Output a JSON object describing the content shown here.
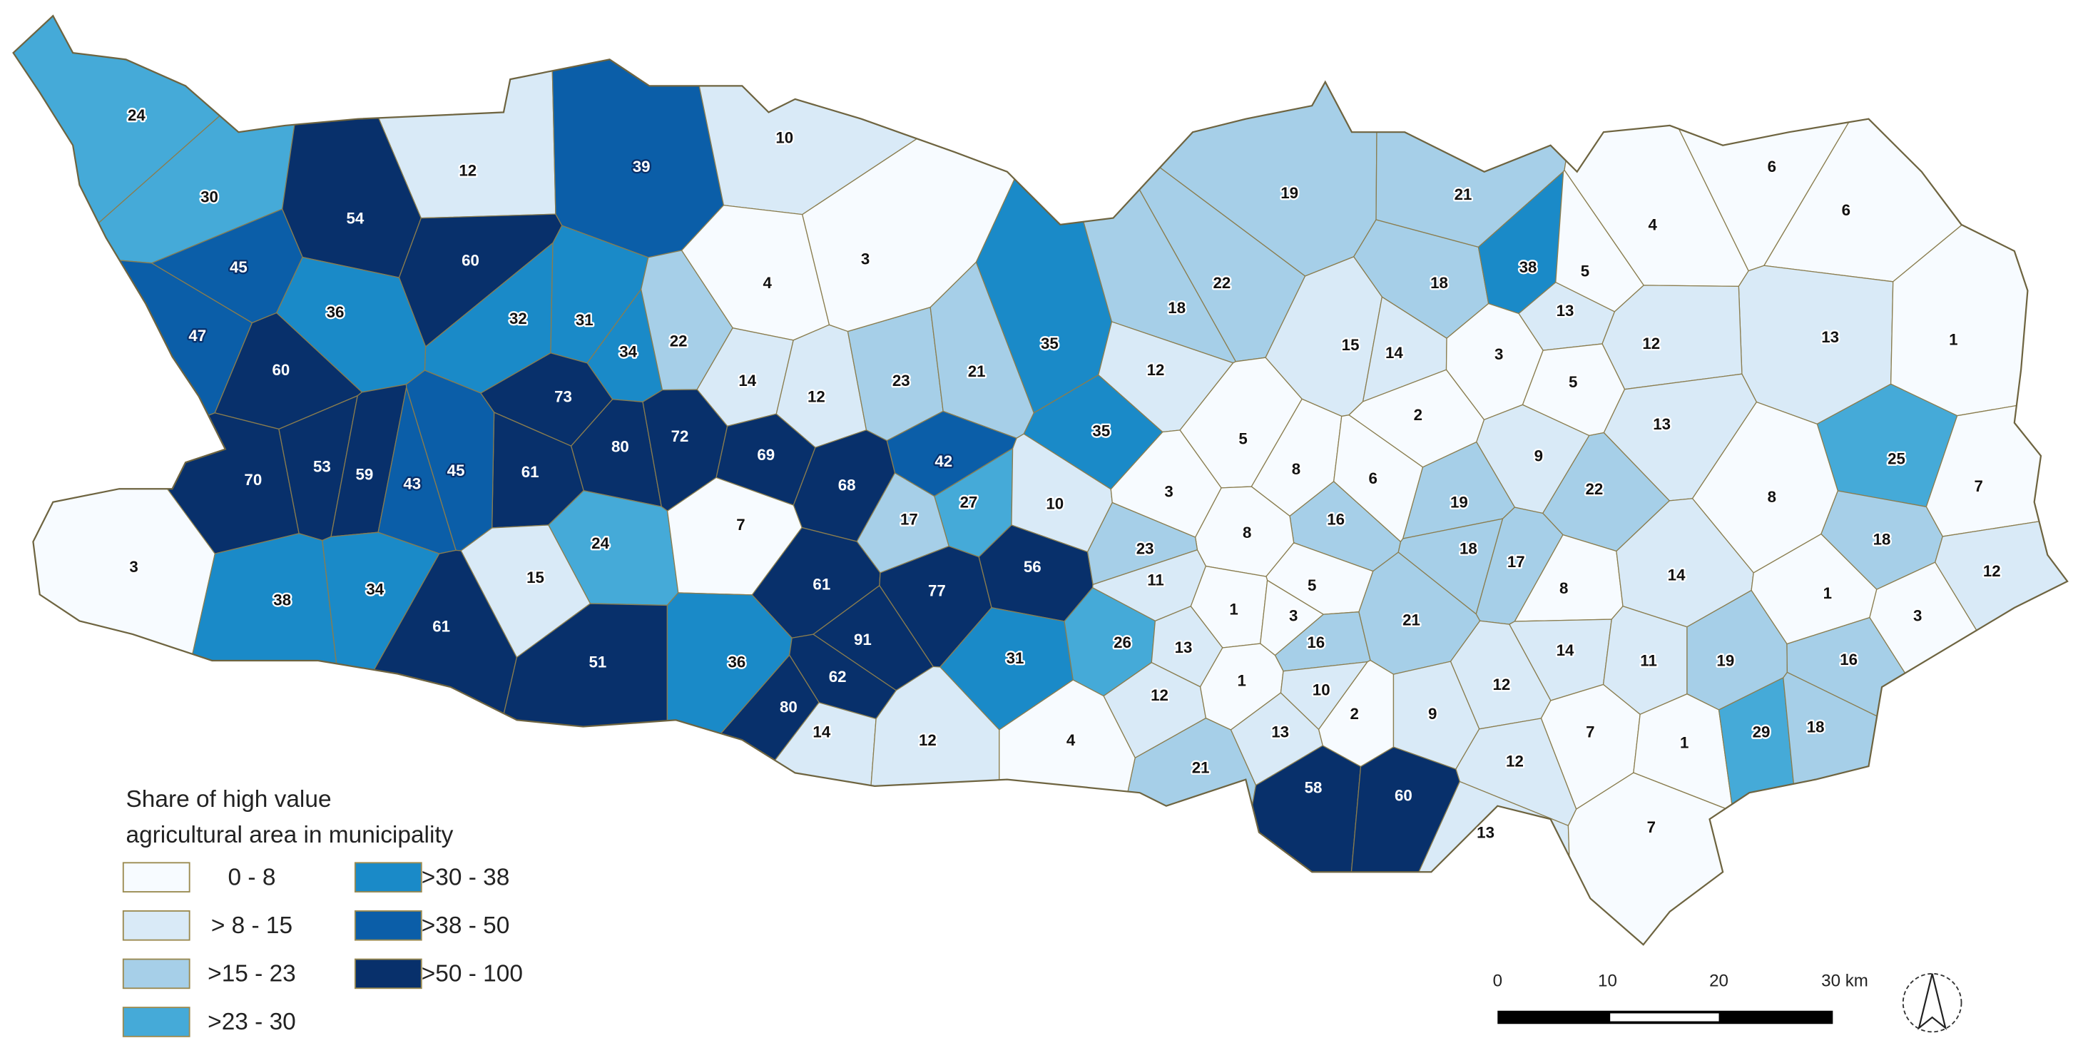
{
  "legend": {
    "title": [
      "Share of high value",
      "agricultural area in municipality"
    ],
    "classes": [
      {
        "label": "0 - 8",
        "max": 8,
        "color": "#f7fbff"
      },
      {
        "label": "> 8 - 15",
        "max": 15,
        "color": "#d9eaf7"
      },
      {
        "label": ">15 - 23",
        "max": 23,
        "color": "#a6cfe8"
      },
      {
        "label": ">23 - 30",
        "max": 30,
        "color": "#45aad8"
      },
      {
        "label": ">30 - 38",
        "max": 38,
        "color": "#1a8ac8"
      },
      {
        "label": ">38 - 50",
        "max": 50,
        "color": "#0b5ea8"
      },
      {
        "label": ">50 - 100",
        "max": 100,
        "color": "#08306b"
      }
    ]
  },
  "municipalities": [
    {
      "value": 24
    },
    {
      "value": 30
    },
    {
      "value": 12
    },
    {
      "value": 54
    },
    {
      "value": 60
    },
    {
      "value": 39
    },
    {
      "value": 10
    },
    {
      "value": 3
    },
    {
      "value": 4
    },
    {
      "value": 45
    },
    {
      "value": 36
    },
    {
      "value": 32
    },
    {
      "value": 31
    },
    {
      "value": 47
    },
    {
      "value": 60
    },
    {
      "value": 34
    },
    {
      "value": 22
    },
    {
      "value": 14
    },
    {
      "value": 12
    },
    {
      "value": 23
    },
    {
      "value": 21
    },
    {
      "value": 35
    },
    {
      "value": 35
    },
    {
      "value": 19
    },
    {
      "value": 21
    },
    {
      "value": 22
    },
    {
      "value": 18
    },
    {
      "value": 18
    },
    {
      "value": 38
    },
    {
      "value": 5
    },
    {
      "value": 13
    },
    {
      "value": 12
    },
    {
      "value": 15
    },
    {
      "value": 14
    },
    {
      "value": 3
    },
    {
      "value": 4
    },
    {
      "value": 6
    },
    {
      "value": 6
    },
    {
      "value": 13
    },
    {
      "value": 1
    },
    {
      "value": 12
    },
    {
      "value": 5
    },
    {
      "value": 13
    },
    {
      "value": 2
    },
    {
      "value": 73
    },
    {
      "value": 80
    },
    {
      "value": 72
    },
    {
      "value": 69
    },
    {
      "value": 61
    },
    {
      "value": 70
    },
    {
      "value": 53
    },
    {
      "value": 59
    },
    {
      "value": 43
    },
    {
      "value": 45
    },
    {
      "value": 42
    },
    {
      "value": 27
    },
    {
      "value": 68
    },
    {
      "value": 17
    },
    {
      "value": 10
    },
    {
      "value": 3
    },
    {
      "value": 5
    },
    {
      "value": 8
    },
    {
      "value": 6
    },
    {
      "value": 16
    },
    {
      "value": 8
    },
    {
      "value": 9
    },
    {
      "value": 19
    },
    {
      "value": 22
    },
    {
      "value": 18
    },
    {
      "value": 17
    },
    {
      "value": 25
    },
    {
      "value": 7
    },
    {
      "value": 8
    },
    {
      "value": 18
    },
    {
      "value": 12
    },
    {
      "value": 3
    },
    {
      "value": 38
    },
    {
      "value": 34
    },
    {
      "value": 24
    },
    {
      "value": 15
    },
    {
      "value": 7
    },
    {
      "value": 61
    },
    {
      "value": 77
    },
    {
      "value": 56
    },
    {
      "value": 23
    },
    {
      "value": 11
    },
    {
      "value": 5
    },
    {
      "value": 1
    },
    {
      "value": 3
    },
    {
      "value": 16
    },
    {
      "value": 21
    },
    {
      "value": 8
    },
    {
      "value": 14
    },
    {
      "value": 1
    },
    {
      "value": 3
    },
    {
      "value": 61
    },
    {
      "value": 51
    },
    {
      "value": 36
    },
    {
      "value": 91
    },
    {
      "value": 62
    },
    {
      "value": 80
    },
    {
      "value": 31
    },
    {
      "value": 26
    },
    {
      "value": 13
    },
    {
      "value": 12
    },
    {
      "value": 1
    },
    {
      "value": 10
    },
    {
      "value": 14
    },
    {
      "value": 11
    },
    {
      "value": 19
    },
    {
      "value": 16
    },
    {
      "value": 12
    },
    {
      "value": 2
    },
    {
      "value": 9
    },
    {
      "value": 13
    },
    {
      "value": 14
    },
    {
      "value": 12
    },
    {
      "value": 4
    },
    {
      "value": 21
    },
    {
      "value": 7
    },
    {
      "value": 1
    },
    {
      "value": 29
    },
    {
      "value": 18
    },
    {
      "value": 12
    },
    {
      "value": 58
    },
    {
      "value": 60
    },
    {
      "value": 13
    },
    {
      "value": 7
    }
  ],
  "scale_bar": {
    "labels": [
      "0",
      "10",
      "20",
      "30 km"
    ]
  }
}
